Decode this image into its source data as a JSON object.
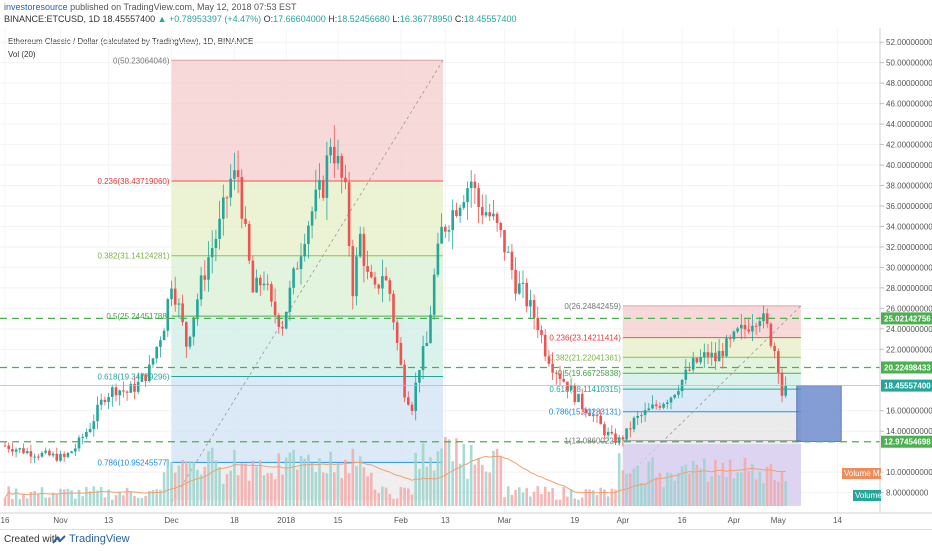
{
  "header": {
    "author": "investoresource",
    "published": "published on TradingView.com, May 12, 2018 07:53 EST",
    "symbol": "BINANCE:ETCUSD, 1D",
    "last": "18.45557400",
    "change": "+0.78953397 (+4.47%)",
    "o_label": "O:",
    "o": "17.66604000",
    "h_label": "H:",
    "h": "18.52456680",
    "l_label": "L:",
    "l": "16.36778950",
    "c_label": "C:",
    "c": "18.45557400"
  },
  "legend": {
    "title": "Ethereum Classic / Dollar (calculated by TradingView), 1D, BINANCE",
    "vol": "Vol (20)"
  },
  "footer": {
    "created_with": "Created with",
    "brand": "TradingView"
  },
  "colors": {
    "up": "#26a69a",
    "down": "#ef5350",
    "hline": "#4caf50",
    "blue": "#2962ff"
  },
  "chart_data": {
    "type": "candlestick",
    "ylim": [
      6.5,
      52.8
    ],
    "yticks": [
      {
        "v": 52,
        "label": "52.00000000"
      },
      {
        "v": 50,
        "label": "50.00000000"
      },
      {
        "v": 48,
        "label": "48.00000000"
      },
      {
        "v": 46,
        "label": "46.00000000"
      },
      {
        "v": 44,
        "label": "44.00000000"
      },
      {
        "v": 42,
        "label": "42.00000000"
      },
      {
        "v": 40,
        "label": "40.00000000"
      },
      {
        "v": 38,
        "label": "38.00000000"
      },
      {
        "v": 36,
        "label": "36.00000000"
      },
      {
        "v": 34,
        "label": "34.00000000"
      },
      {
        "v": 32,
        "label": "32.00000000"
      },
      {
        "v": 30,
        "label": "30.00000000"
      },
      {
        "v": 28,
        "label": "28.00000000"
      },
      {
        "v": 26,
        "label": "26.00000000"
      },
      {
        "v": 24,
        "label": "24.00000000"
      },
      {
        "v": 22,
        "label": "22.00000000"
      },
      {
        "v": 16,
        "label": "16.00000000"
      },
      {
        "v": 14,
        "label": "14.00000000"
      },
      {
        "v": 10,
        "label": "10.00000000"
      },
      {
        "v": 8,
        "label": "8.00000000"
      }
    ],
    "xticks": [
      {
        "d": 0,
        "label": "16"
      },
      {
        "d": 15,
        "label": "Nov"
      },
      {
        "d": 28,
        "label": "13"
      },
      {
        "d": 45,
        "label": "Dec"
      },
      {
        "d": 62,
        "label": "18"
      },
      {
        "d": 76,
        "label": "2018"
      },
      {
        "d": 90,
        "label": "15"
      },
      {
        "d": 107,
        "label": "Feb"
      },
      {
        "d": 119,
        "label": "13"
      },
      {
        "d": 135,
        "label": "Mar"
      },
      {
        "d": 154,
        "label": "19"
      },
      {
        "d": 167,
        "label": "Apr"
      },
      {
        "d": 183,
        "label": "16"
      },
      {
        "d": 197,
        "label": "Apr"
      },
      {
        "d": 209,
        "label": "May"
      },
      {
        "d": 225,
        "label": "14"
      }
    ],
    "hlines": [
      {
        "value": 25.02142756,
        "label": "25.02142756"
      },
      {
        "value": 20.22498433,
        "label": "20.22498433"
      },
      {
        "value": 12.97454698,
        "label": "12.97454698"
      }
    ],
    "price_tag": {
      "value": 18.455574,
      "label": "18.45557400"
    },
    "fib1": {
      "start_day": 45,
      "end_day": 106,
      "high": 50.23064046,
      "low": 10.95245577,
      "levels": [
        {
          "ratio": 0,
          "price": 50.23064046,
          "label": "0(50.23064046)"
        },
        {
          "ratio": 0.236,
          "price": 38.4371906,
          "label": "0.236(38.43719060)"
        },
        {
          "ratio": 0.382,
          "price": 31.14124281,
          "label": "0.382(31.14124281)"
        },
        {
          "ratio": 0.5,
          "price": 25.24451788,
          "label": "0.5(25.24451788)"
        },
        {
          "ratio": 0.618,
          "price": 19.34779296,
          "label": "0.618(19.34779296)"
        },
        {
          "ratio": 0.786,
          "price": 10.95245577,
          "label": "0.786(10.95245577)"
        }
      ]
    },
    "fib2": {
      "start_day": 167,
      "end_day": 207,
      "high": 26.24842459,
      "low": 13.08600227,
      "levels": [
        {
          "ratio": 0,
          "price": 26.24842459,
          "label": "0(26.24842459)"
        },
        {
          "ratio": 0.236,
          "price": 23.14211414,
          "label": "0.236(23.14211414)"
        },
        {
          "ratio": 0.382,
          "price": 21.22041361,
          "label": "0.382(21.22041361)"
        },
        {
          "ratio": 0.5,
          "price": 19.66725838,
          "label": "0.5(19.66725838)"
        },
        {
          "ratio": 0.618,
          "price": 18.11410315,
          "label": "0.618(18.11410315)"
        },
        {
          "ratio": 0.786,
          "price": 15.90283131,
          "label": "0.786(15.90283131)"
        },
        {
          "ratio": 1,
          "price": 13.08600227,
          "label": "1(13.08600227)"
        }
      ]
    },
    "blue_box": {
      "start_day": 214,
      "end_day": 226,
      "top": 18.455574,
      "bottom": 13.0
    },
    "volume_ma_label": "Volume MA",
    "volume_label": "Volume",
    "anchors": [
      [
        0,
        12.6
      ],
      [
        6,
        12.0
      ],
      [
        12,
        11.6
      ],
      [
        16,
        11.4
      ],
      [
        19,
        12.4
      ],
      [
        23,
        14.5
      ],
      [
        27,
        17.5
      ],
      [
        30,
        18.2
      ],
      [
        33,
        17.8
      ],
      [
        36,
        18.6
      ],
      [
        39,
        20.0
      ],
      [
        43,
        24.5
      ],
      [
        45,
        28.8
      ],
      [
        47,
        26.0
      ],
      [
        49,
        22.5
      ],
      [
        52,
        27.0
      ],
      [
        55,
        31.0
      ],
      [
        58,
        34.0
      ],
      [
        61,
        38.5
      ],
      [
        63,
        39.0
      ],
      [
        65,
        33.0
      ],
      [
        67,
        27.5
      ],
      [
        70,
        29.0
      ],
      [
        72,
        26.0
      ],
      [
        75,
        24.5
      ],
      [
        78,
        29.0
      ],
      [
        81,
        33.5
      ],
      [
        84,
        36.5
      ],
      [
        86,
        38.0
      ],
      [
        88,
        42.5
      ],
      [
        90,
        40.0
      ],
      [
        92,
        37.0
      ],
      [
        94,
        28.0
      ],
      [
        96,
        33.0
      ],
      [
        98,
        29.0
      ],
      [
        100,
        27.5
      ],
      [
        102,
        29.5
      ],
      [
        104,
        27.5
      ],
      [
        106,
        22.5
      ],
      [
        108,
        18.0
      ],
      [
        110,
        16.5
      ],
      [
        112,
        20.5
      ],
      [
        114,
        22.5
      ],
      [
        116,
        29.0
      ],
      [
        118,
        33.5
      ],
      [
        121,
        35.5
      ],
      [
        124,
        37.5
      ],
      [
        126,
        38.5
      ],
      [
        128,
        36.0
      ],
      [
        130,
        35.5
      ],
      [
        132,
        34.5
      ],
      [
        134,
        33.0
      ],
      [
        136,
        31.0
      ],
      [
        138,
        28.5
      ],
      [
        140,
        27.5
      ],
      [
        142,
        26.0
      ],
      [
        144,
        24.5
      ],
      [
        146,
        22.0
      ],
      [
        148,
        20.5
      ],
      [
        150,
        19.5
      ],
      [
        152,
        18.5
      ],
      [
        154,
        17.5
      ],
      [
        156,
        16.5
      ],
      [
        158,
        16.0
      ],
      [
        160,
        15.0
      ],
      [
        162,
        14.0
      ],
      [
        164,
        13.3
      ],
      [
        166,
        13.1
      ],
      [
        168,
        13.8
      ],
      [
        170,
        15.0
      ],
      [
        172,
        15.5
      ],
      [
        174,
        16.0
      ],
      [
        176,
        16.5
      ],
      [
        178,
        17.0
      ],
      [
        180,
        17.5
      ],
      [
        182,
        18.5
      ],
      [
        184,
        19.5
      ],
      [
        186,
        20.5
      ],
      [
        188,
        21.0
      ],
      [
        190,
        21.5
      ],
      [
        192,
        21.0
      ],
      [
        194,
        22.0
      ],
      [
        196,
        22.5
      ],
      [
        198,
        23.5
      ],
      [
        200,
        24.0
      ],
      [
        202,
        25.0
      ],
      [
        204,
        25.5
      ],
      [
        206,
        24.0
      ],
      [
        208,
        22.0
      ],
      [
        209,
        20.5
      ],
      [
        210,
        17.66
      ],
      [
        211,
        18.46
      ]
    ]
  }
}
